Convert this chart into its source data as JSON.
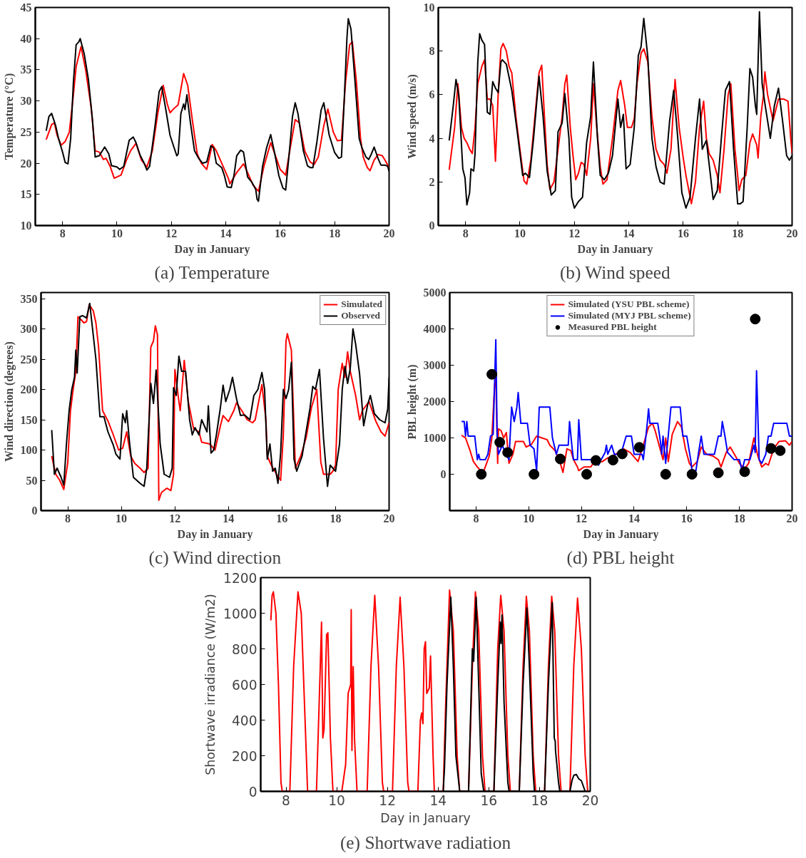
{
  "chart_data": [
    {
      "type": "line",
      "title": "(a) Temperature",
      "xlabel": "Day in January",
      "ylabel": "Temperature (°C)",
      "xlim": [
        7,
        20
      ],
      "ylim": [
        10,
        45
      ],
      "xticks": [
        8,
        10,
        12,
        14,
        16,
        18,
        20
      ],
      "yticks": [
        10,
        15,
        20,
        25,
        30,
        35,
        40,
        45
      ],
      "legend": false,
      "series": [
        {
          "color": "#ff0000",
          "x": [
            7.4,
            7.6,
            7.7,
            7.8,
            7.95,
            8.1,
            8.25,
            8.4,
            8.5,
            8.68,
            8.85,
            9.05,
            9.2,
            9.35,
            9.5,
            9.6,
            9.75,
            9.9,
            10.15,
            10.35,
            10.5,
            10.7,
            10.9,
            11.1,
            11.3,
            11.5,
            11.7,
            11.85,
            11.95,
            12.1,
            12.25,
            12.45,
            12.6,
            12.8,
            12.95,
            13.1,
            13.3,
            13.5,
            13.65,
            13.9,
            14.1,
            14.15,
            14.4,
            14.65,
            14.8,
            15.0,
            15.2,
            15.4,
            15.65,
            15.8,
            16.0,
            16.2,
            16.35,
            16.55,
            16.7,
            16.9,
            17.1,
            17.25,
            17.4,
            17.6,
            17.75,
            17.95,
            18.1,
            18.25,
            18.4,
            18.55,
            18.65,
            18.8,
            18.95,
            19.05,
            19.2,
            19.3,
            19.45,
            19.6,
            19.75,
            19.85,
            20.0
          ],
          "values": [
            23.8,
            26.2,
            26.5,
            24.5,
            22.9,
            23.5,
            25,
            31,
            35.5,
            38.7,
            35,
            29,
            22,
            21.8,
            20.6,
            20.8,
            19.5,
            17.6,
            18.1,
            20.5,
            22,
            23.2,
            20.5,
            19.4,
            22,
            28,
            32.5,
            29.5,
            28.1,
            28.8,
            29.4,
            34.4,
            32.5,
            26,
            21.5,
            20,
            19,
            23,
            22,
            19.5,
            17.5,
            16.7,
            18.5,
            19.9,
            18.5,
            16.5,
            15.5,
            19.5,
            23.3,
            21.5,
            19,
            18.1,
            22,
            27,
            26.5,
            22,
            20.2,
            19.8,
            21,
            26,
            28.7,
            25,
            23.6,
            23.7,
            33,
            39,
            39.5,
            33,
            24,
            21,
            19.3,
            18.8,
            20.5,
            21.4,
            21.2,
            20.5,
            19.3
          ]
        },
        {
          "color": "#000000",
          "x": [
            7.4,
            7.5,
            7.6,
            7.75,
            7.85,
            8.0,
            8.1,
            8.2,
            8.3,
            8.4,
            8.5,
            8.6,
            8.65,
            8.8,
            8.95,
            9.1,
            9.2,
            9.35,
            9.55,
            9.7,
            9.8,
            10.0,
            10.1,
            10.25,
            10.45,
            10.6,
            10.7,
            10.85,
            11.0,
            11.1,
            11.2,
            11.4,
            11.55,
            11.65,
            11.8,
            11.95,
            12.1,
            12.2,
            12.25,
            12.35,
            12.45,
            12.5,
            12.57,
            12.7,
            12.85,
            13.0,
            13.15,
            13.3,
            13.45,
            13.55,
            13.65,
            13.85,
            13.95,
            14.05,
            14.2,
            14.3,
            14.4,
            14.55,
            14.65,
            14.8,
            14.95,
            15.1,
            15.15,
            15.2,
            15.35,
            15.5,
            15.65,
            15.8,
            15.95,
            16.1,
            16.2,
            16.35,
            16.45,
            16.55,
            16.65,
            16.85,
            17.0,
            17.1,
            17.2,
            17.35,
            17.5,
            17.6,
            17.8,
            18.0,
            18.15,
            18.25,
            18.35,
            18.45,
            18.5,
            18.6,
            18.75,
            18.9,
            19.0,
            19.15,
            19.25,
            19.35,
            19.45,
            19.6,
            19.7,
            19.85,
            19.95,
            20.0
          ],
          "values": [
            25.2,
            27.5,
            28,
            26,
            24,
            21.8,
            20.1,
            19.9,
            24,
            33,
            39,
            39.5,
            40,
            37.5,
            33.5,
            27,
            21,
            21.2,
            22.6,
            21.5,
            19.6,
            19.4,
            19,
            19.5,
            23.7,
            24.2,
            23.3,
            21.3,
            20,
            18.9,
            19.5,
            26,
            31.5,
            32.3,
            28.5,
            24.5,
            22.5,
            21.2,
            21.5,
            28,
            29.5,
            28.6,
            31,
            26.5,
            22,
            20.8,
            20,
            20.2,
            22.8,
            22.5,
            20,
            19.3,
            18,
            16.2,
            16.1,
            18,
            21.2,
            22.1,
            21.8,
            17.8,
            17,
            15.8,
            14.2,
            13.9,
            19.5,
            22.5,
            24.6,
            21.5,
            18,
            16,
            15.7,
            22.5,
            27.5,
            29.7,
            28,
            22,
            19.6,
            19.3,
            19.3,
            23.5,
            28.5,
            29.7,
            24.5,
            21.7,
            20.8,
            21,
            30,
            40,
            43.2,
            41.5,
            33,
            24,
            22.5,
            21,
            20.6,
            21.5,
            22.6,
            20.7,
            19.7,
            19.7,
            19.5,
            18.7
          ]
        }
      ]
    },
    {
      "type": "line",
      "title": "(b) Wind speed",
      "xlabel": "Day in January",
      "ylabel": "Wind speed (m/s)",
      "xlim": [
        7,
        20
      ],
      "ylim": [
        0,
        10
      ],
      "xticks": [
        8,
        10,
        12,
        14,
        16,
        18,
        20
      ],
      "yticks": [
        0,
        2,
        4,
        6,
        8,
        10
      ],
      "legend": false,
      "series": [
        {
          "color": "#ff0000",
          "x": [
            7.4,
            7.6,
            7.72,
            7.85,
            7.95,
            8.05,
            8.15,
            8.25,
            8.35,
            8.45,
            8.6,
            8.7,
            8.8,
            8.9,
            9.0,
            9.1,
            9.2,
            9.3,
            9.38,
            9.5,
            9.6,
            9.7,
            9.85,
            10.0,
            10.15,
            10.25,
            10.4,
            10.55,
            10.7,
            10.8,
            10.9,
            11.0,
            11.1,
            11.25,
            11.4,
            11.55,
            11.65,
            11.72,
            11.85,
            11.95,
            12.05,
            12.15,
            12.25,
            12.35,
            12.45,
            12.6,
            12.7,
            12.82,
            12.95,
            13.05,
            13.2,
            13.4,
            13.6,
            13.7,
            13.85,
            13.95,
            14.1,
            14.2,
            14.3,
            14.45,
            14.55,
            14.7,
            14.85,
            15.0,
            15.15,
            15.3,
            15.4,
            15.55,
            15.7,
            15.85,
            16.0,
            16.1,
            16.3,
            16.45,
            16.6,
            16.75,
            16.85,
            16.95,
            17.1,
            17.25,
            17.35,
            17.5,
            17.65,
            17.75,
            17.9,
            18.0,
            18.05,
            18.15,
            18.3,
            18.45,
            18.55,
            18.7,
            18.75,
            18.85,
            18.95,
            19.0,
            19.1,
            19.3,
            19.5,
            19.7,
            19.85,
            19.95,
            20.0
          ],
          "values": [
            2.55,
            4.5,
            6.5,
            4.5,
            4,
            3.8,
            3.5,
            3.3,
            4.5,
            6.5,
            7.3,
            7.6,
            5.8,
            5.8,
            5.5,
            2.95,
            6,
            8.1,
            8.35,
            8,
            7.3,
            7,
            5,
            3.5,
            2.05,
            1.9,
            3,
            5,
            7,
            7.35,
            5,
            2.8,
            1.65,
            2,
            3.5,
            5,
            6.5,
            6.9,
            4.5,
            3.2,
            2.1,
            2.4,
            2.9,
            2.8,
            2.3,
            4,
            6.5,
            4.5,
            2.7,
            1.9,
            2.1,
            4,
            6.2,
            6.65,
            5.5,
            4.5,
            4.5,
            4.9,
            6.5,
            7.9,
            8.1,
            7.5,
            5,
            3.5,
            3,
            2.8,
            2.4,
            3.5,
            6.7,
            4.5,
            3.1,
            2.3,
            1.0,
            2,
            4.5,
            5.7,
            4,
            3.3,
            3,
            2.3,
            1.5,
            3.5,
            6,
            6.5,
            3.5,
            2.3,
            1.6,
            2.1,
            2.3,
            3.8,
            4.2,
            3.7,
            3.1,
            5,
            6,
            7.05,
            6,
            4.8,
            5.8,
            5.8,
            5.7,
            4,
            3.3
          ]
        },
        {
          "color": "#000000",
          "x": [
            7.4,
            7.55,
            7.65,
            7.75,
            7.9,
            7.98,
            8.05,
            8.15,
            8.2,
            8.3,
            8.35,
            8.45,
            8.52,
            8.6,
            8.7,
            8.8,
            8.9,
            9.0,
            9.1,
            9.2,
            9.3,
            9.35,
            9.5,
            9.7,
            9.9,
            10.1,
            10.2,
            10.35,
            10.5,
            10.7,
            10.85,
            11.0,
            11.15,
            11.3,
            11.4,
            11.55,
            11.65,
            11.8,
            11.9,
            12.0,
            12.15,
            12.3,
            12.45,
            12.6,
            12.7,
            12.85,
            12.95,
            13.1,
            13.25,
            13.4,
            13.6,
            13.7,
            13.8,
            13.9,
            14.05,
            14.2,
            14.35,
            14.45,
            14.55,
            14.7,
            14.85,
            15.0,
            15.15,
            15.3,
            15.5,
            15.65,
            15.8,
            15.95,
            16.1,
            16.25,
            16.45,
            16.6,
            16.7,
            16.85,
            17.0,
            17.1,
            17.25,
            17.4,
            17.55,
            17.7,
            17.85,
            18.0,
            18.1,
            18.2,
            18.35,
            18.45,
            18.55,
            18.65,
            18.7,
            18.8,
            18.9,
            19.0,
            19.2,
            19.35,
            19.5,
            19.65,
            19.8,
            19.9,
            20.0
          ],
          "values": [
            3.9,
            5.5,
            6.7,
            6,
            2.6,
            2.2,
            0.95,
            1.5,
            2.6,
            2.5,
            3.3,
            7.5,
            8.8,
            8.5,
            8.3,
            5.2,
            5.1,
            6.6,
            6.3,
            6.1,
            7.5,
            7.6,
            7.4,
            6.2,
            4.3,
            2.3,
            2.4,
            2.2,
            4,
            6.85,
            5,
            2.5,
            1.4,
            1.6,
            4.3,
            4.7,
            6.05,
            4,
            1.3,
            0.8,
            1.1,
            1.3,
            3.8,
            5,
            7.5,
            4,
            2.3,
            2.1,
            2.4,
            3.2,
            5.8,
            4.5,
            5.1,
            2.6,
            2.8,
            4.5,
            7.8,
            8.2,
            9.5,
            7.7,
            4,
            2.7,
            2,
            1.9,
            4.8,
            6.2,
            4,
            1.5,
            0.8,
            1.3,
            4,
            5.8,
            3.5,
            3.9,
            2.3,
            1.2,
            1.6,
            4,
            6.2,
            6.6,
            3.5,
            1,
            1,
            1.1,
            4.5,
            7.2,
            6.8,
            5.5,
            5.1,
            9.8,
            6.5,
            5.6,
            4,
            5.5,
            6.3,
            4.8,
            3.2,
            3.0,
            3.2
          ]
        }
      ]
    },
    {
      "type": "line",
      "title": "(c) Wind direction",
      "xlabel": "Day in January",
      "ylabel": "Wind direction (degrees)",
      "xlim": [
        7,
        20
      ],
      "ylim": [
        0,
        360
      ],
      "xticks": [
        8,
        10,
        12,
        14,
        16,
        18,
        20
      ],
      "yticks": [
        0,
        50,
        100,
        150,
        200,
        250,
        300,
        350
      ],
      "legend": "top right",
      "series": [
        {
          "name": "Simulated",
          "color": "#ff0000",
          "x": [
            7.4,
            7.55,
            7.7,
            7.85,
            8.0,
            8.1,
            8.2,
            8.3,
            8.38,
            8.5,
            8.6,
            8.7,
            8.8,
            8.95,
            9.05,
            9.15,
            9.3,
            9.5,
            9.7,
            9.9,
            10.05,
            10.2,
            10.35,
            10.5,
            10.7,
            10.85,
            11.0,
            11.1,
            11.2,
            11.27,
            11.35,
            11.4,
            11.5,
            11.7,
            11.85,
            11.95,
            12.0,
            12.15,
            12.2,
            12.35,
            12.5,
            12.7,
            12.9,
            13.0,
            13.3,
            13.5,
            13.7,
            13.8,
            14.0,
            14.2,
            14.3,
            14.5,
            14.7,
            14.9,
            15.0,
            15.25,
            15.4,
            15.45,
            15.6,
            15.8,
            15.95,
            16.05,
            16.15,
            16.2,
            16.35,
            16.5,
            16.7,
            16.9,
            17.1,
            17.3,
            17.45,
            17.55,
            17.8,
            17.9,
            18.0,
            18.1,
            18.25,
            18.35,
            18.45,
            18.55,
            18.75,
            18.9,
            19.0,
            19.25,
            19.5,
            19.7,
            19.85,
            20.0
          ],
          "values": [
            90,
            60,
            50,
            35,
            80,
            165,
            200,
            230,
            320,
            315,
            310,
            312,
            340,
            330,
            310,
            270,
            165,
            148,
            125,
            100,
            103,
            130,
            90,
            78,
            70,
            63,
            70,
            270,
            280,
            305,
            290,
            17,
            30,
            37,
            33,
            60,
            233,
            180,
            165,
            248,
            180,
            135,
            130,
            113,
            110,
            100,
            140,
            157,
            147,
            165,
            178,
            165,
            150,
            145,
            150,
            208,
            150,
            90,
            75,
            60,
            50,
            125,
            280,
            292,
            265,
            70,
            90,
            120,
            170,
            200,
            80,
            60,
            60,
            65,
            75,
            200,
            243,
            220,
            262,
            230,
            190,
            150,
            165,
            180,
            148,
            130,
            123,
            145
          ]
        },
        {
          "name": "Observed",
          "color": "#000000",
          "x": [
            7.4,
            7.5,
            7.6,
            7.75,
            7.85,
            7.95,
            8.05,
            8.15,
            8.25,
            8.3,
            8.35,
            8.45,
            8.55,
            8.7,
            8.82,
            8.95,
            9.05,
            9.2,
            9.35,
            9.5,
            9.7,
            9.8,
            9.95,
            10.05,
            10.15,
            10.2,
            10.3,
            10.45,
            10.7,
            10.85,
            10.95,
            11.1,
            11.2,
            11.3,
            11.45,
            11.6,
            11.8,
            11.9,
            11.95,
            12.05,
            12.15,
            12.25,
            12.4,
            12.55,
            12.65,
            12.75,
            12.9,
            13.0,
            13.1,
            13.2,
            13.25,
            13.35,
            13.45,
            13.55,
            13.7,
            13.8,
            13.9,
            14.05,
            14.15,
            14.3,
            14.45,
            14.6,
            14.8,
            14.95,
            15.1,
            15.25,
            15.35,
            15.45,
            15.55,
            15.65,
            15.75,
            15.85,
            15.95,
            16.05,
            16.15,
            16.25,
            16.35,
            16.45,
            16.55,
            16.75,
            16.9,
            17.05,
            17.15,
            17.25,
            17.4,
            17.55,
            17.7,
            17.8,
            18.0,
            18.15,
            18.25,
            18.35,
            18.45,
            18.55,
            18.65,
            18.75,
            18.9,
            19.05,
            19.2,
            19.3,
            19.45,
            19.65,
            19.85,
            19.95,
            20.0
          ],
          "values": [
            133,
            60,
            70,
            55,
            42,
            110,
            165,
            200,
            220,
            265,
            227,
            320,
            322,
            318,
            342,
            290,
            250,
            155,
            155,
            130,
            108,
            93,
            85,
            160,
            145,
            165,
            115,
            55,
            45,
            40,
            70,
            210,
            177,
            232,
            110,
            60,
            55,
            70,
            203,
            190,
            255,
            230,
            230,
            150,
            125,
            137,
            125,
            150,
            140,
            130,
            173,
            95,
            100,
            125,
            170,
            207,
            180,
            200,
            220,
            185,
            157,
            158,
            150,
            190,
            200,
            228,
            200,
            85,
            110,
            65,
            70,
            45,
            95,
            200,
            185,
            200,
            245,
            85,
            65,
            90,
            130,
            170,
            205,
            200,
            233,
            120,
            40,
            75,
            65,
            110,
            200,
            238,
            210,
            235,
            300,
            275,
            225,
            140,
            175,
            190,
            160,
            150,
            145,
            168,
            220
          ]
        }
      ]
    },
    {
      "type": "line",
      "title": "(d) PBL height",
      "xlabel": "Day in January",
      "ylabel": "PBL height (m)",
      "xlim": [
        7,
        20
      ],
      "ylim": [
        -1000,
        5000
      ],
      "xticks": [
        8,
        10,
        12,
        14,
        16,
        18,
        20
      ],
      "yticks": [
        0,
        1000,
        2000,
        3000,
        4000,
        5000
      ],
      "legend": "top",
      "series": [
        {
          "name": "Simulated (YSU PBL scheme)",
          "color": "#ff0000",
          "x": [
            7.45,
            7.6,
            7.75,
            7.9,
            8.05,
            8.15,
            8.3,
            8.4,
            8.5,
            8.6,
            8.7,
            8.75,
            8.82,
            8.85,
            8.95,
            9.05,
            9.15,
            9.25,
            9.4,
            9.5,
            9.8,
            9.9,
            10.1,
            10.3,
            10.5,
            10.7,
            10.8,
            11.0,
            11.2,
            11.3,
            11.45,
            11.6,
            11.7,
            11.85,
            11.9,
            12.1,
            12.35,
            12.5,
            12.8,
            13.0,
            13.3,
            13.6,
            13.85,
            14.15,
            14.35,
            14.55,
            14.7,
            14.8,
            14.95,
            15.1,
            15.2,
            15.3,
            15.45,
            15.65,
            15.8,
            15.95,
            16.1,
            16.2,
            16.4,
            16.55,
            16.75,
            17.0,
            17.2,
            17.3,
            17.5,
            17.65,
            17.85,
            18.0,
            18.2,
            18.35,
            18.55,
            18.7,
            18.85,
            19.0,
            19.1,
            19.3,
            19.5,
            19.75,
            19.9,
            20.0
          ],
          "values": [
            1070,
            1000,
            700,
            350,
            200,
            120,
            100,
            300,
            500,
            1000,
            2400,
            2700,
            300,
            1250,
            1200,
            1000,
            1150,
            300,
            550,
            900,
            900,
            750,
            820,
            1050,
            1000,
            950,
            800,
            650,
            300,
            50,
            700,
            650,
            400,
            200,
            100,
            200,
            200,
            350,
            350,
            450,
            550,
            700,
            600,
            350,
            800,
            1300,
            1400,
            1200,
            800,
            400,
            1000,
            350,
            1100,
            1450,
            1300,
            700,
            300,
            200,
            350,
            750,
            550,
            500,
            400,
            200,
            600,
            750,
            500,
            300,
            150,
            300,
            1000,
            500,
            200,
            300,
            250,
            700,
            900,
            920,
            800,
            900
          ]
        },
        {
          "name": "Simulated (MYJ PBL scheme)",
          "color": "#0000ff",
          "x": [
            7.45,
            7.55,
            7.6,
            7.65,
            7.7,
            7.95,
            8.05,
            8.1,
            8.15,
            8.35,
            8.45,
            8.55,
            8.65,
            8.75,
            8.8,
            8.85,
            9.0,
            9.1,
            9.25,
            9.35,
            9.45,
            9.55,
            9.6,
            9.7,
            9.95,
            10.05,
            10.2,
            10.3,
            10.4,
            10.8,
            10.9,
            11.05,
            11.15,
            11.5,
            11.55,
            11.65,
            11.7,
            11.85,
            11.9,
            12.0,
            12.4,
            12.6,
            12.65,
            12.75,
            12.9,
            12.95,
            13.0,
            13.15,
            13.25,
            13.5,
            13.7,
            13.9,
            14.0,
            14.3,
            14.35,
            14.45,
            14.5,
            14.55,
            14.6,
            14.9,
            15.0,
            15.05,
            15.1,
            15.2,
            15.4,
            15.75,
            15.85,
            16.0,
            16.15,
            16.2,
            16.35,
            16.45,
            16.55,
            16.65,
            16.8,
            17.05,
            17.2,
            17.3,
            17.35,
            17.45,
            17.55,
            17.8,
            18.0,
            18.1,
            18.2,
            18.4,
            18.55,
            18.6,
            18.65,
            18.75,
            18.85,
            19.0,
            19.1,
            19.2,
            19.3,
            19.8,
            19.9,
            20.0
          ],
          "values": [
            1450,
            1450,
            1050,
            1450,
            1050,
            1050,
            400,
            550,
            400,
            400,
            550,
            1050,
            1100,
            3700,
            1100,
            550,
            800,
            600,
            400,
            1850,
            1450,
            1850,
            2250,
            1400,
            1400,
            800,
            700,
            100,
            1850,
            1850,
            1000,
            550,
            800,
            800,
            1450,
            700,
            400,
            400,
            1500,
            400,
            400,
            400,
            250,
            400,
            600,
            800,
            550,
            800,
            550,
            550,
            1050,
            1050,
            550,
            550,
            400,
            1050,
            1400,
            1800,
            1400,
            1400,
            900,
            550,
            1050,
            300,
            1850,
            1850,
            1050,
            1050,
            400,
            100,
            100,
            600,
            1050,
            550,
            550,
            550,
            1050,
            1050,
            1450,
            1050,
            600,
            400,
            400,
            100,
            400,
            400,
            800,
            600,
            2850,
            400,
            300,
            550,
            1050,
            1050,
            1400,
            1400,
            1050,
            1050
          ]
        },
        {
          "name": "Measured PBL height",
          "type": "scatter",
          "marker": "circle",
          "color": "#000000",
          "x": [
            8.2,
            8.6,
            8.9,
            9.2,
            10.2,
            11.2,
            12.2,
            12.55,
            13.2,
            13.55,
            14.2,
            15.2,
            16.2,
            17.2,
            18.2,
            18.6,
            19.2,
            19.55
          ],
          "values": [
            0,
            2750,
            880,
            600,
            0,
            420,
            0,
            380,
            390,
            560,
            740,
            0,
            0,
            40,
            70,
            4270,
            710,
            650
          ]
        }
      ]
    },
    {
      "type": "line",
      "title": "(e) Shortwave radiation",
      "xlabel": "Day in January",
      "ylabel": "Shortwave irradiance (W/m2)",
      "xlim": [
        7,
        20
      ],
      "ylim": [
        0,
        1200
      ],
      "xticks": [
        8,
        10,
        12,
        14,
        16,
        18,
        20
      ],
      "yticks": [
        0,
        200,
        400,
        600,
        800,
        1000,
        1200
      ],
      "legend": false,
      "series": [
        {
          "color": "#ff0000",
          "x": [
            7.4,
            7.45,
            7.5,
            7.6,
            7.7,
            7.8,
            7.85,
            8.15,
            8.3,
            8.47,
            8.6,
            8.75,
            8.85,
            9.2,
            9.35,
            9.4,
            9.45,
            9.5,
            9.6,
            9.65,
            9.75,
            9.85,
            10.2,
            10.35,
            10.45,
            10.55,
            10.57,
            10.6,
            10.65,
            10.7,
            10.8,
            11.2,
            11.35,
            11.5,
            11.65,
            11.8,
            11.85,
            12.2,
            12.35,
            12.5,
            12.65,
            12.8,
            12.85,
            13.2,
            13.3,
            13.35,
            13.4,
            13.45,
            13.5,
            13.55,
            13.65,
            13.7,
            13.8,
            13.85,
            14.2,
            14.3,
            14.45,
            14.6,
            14.75,
            14.85,
            15.2,
            15.35,
            15.47,
            15.6,
            15.75,
            15.85,
            16.2,
            16.35,
            16.47,
            16.6,
            16.75,
            16.85,
            17.2,
            17.35,
            17.48,
            17.6,
            17.75,
            17.85,
            18.2,
            18.35,
            18.48,
            18.6,
            18.75,
            18.85,
            19.2,
            19.35,
            19.5,
            19.65,
            19.8,
            19.9
          ],
          "values": [
            960,
            1100,
            1120,
            1000,
            600,
            50,
            0,
            0,
            700,
            1120,
            1000,
            400,
            0,
            0,
            700,
            950,
            300,
            350,
            880,
            890,
            300,
            0,
            0,
            150,
            550,
            600,
            1020,
            230,
            700,
            300,
            0,
            0,
            700,
            1100,
            700,
            50,
            0,
            0,
            700,
            1090,
            700,
            50,
            0,
            0,
            400,
            440,
            380,
            800,
            840,
            550,
            580,
            760,
            200,
            0,
            0,
            500,
            1130,
            900,
            200,
            0,
            0,
            700,
            1120,
            900,
            200,
            0,
            0,
            800,
            1100,
            900,
            200,
            0,
            0,
            700,
            1095,
            900,
            200,
            0,
            0,
            700,
            1095,
            900,
            200,
            0,
            0,
            700,
            1085,
            800,
            200,
            0
          ]
        },
        {
          "color": "#000000",
          "x": [
            14.2,
            14.25,
            14.35,
            14.5,
            14.6,
            14.7,
            14.85,
            15.2,
            15.35,
            15.4,
            15.45,
            15.5,
            15.6,
            15.7,
            15.8,
            16.2,
            16.35,
            16.45,
            16.48,
            16.52,
            16.6,
            16.75,
            16.8,
            17.2,
            17.35,
            17.5,
            17.6,
            17.75,
            17.8,
            18.2,
            18.35,
            18.5,
            18.58,
            18.62,
            18.63,
            18.75,
            18.8,
            19.2,
            19.28,
            19.35,
            19.45,
            19.55,
            19.65,
            19.8
          ],
          "values": [
            0,
            130,
            600,
            1090,
            700,
            200,
            0,
            0,
            800,
            730,
            900,
            1090,
            600,
            100,
            0,
            0,
            600,
            950,
            830,
            990,
            500,
            50,
            0,
            0,
            600,
            1030,
            700,
            100,
            0,
            0,
            600,
            1060,
            300,
            280,
            230,
            50,
            0,
            0,
            60,
            90,
            95,
            70,
            60,
            0
          ]
        }
      ]
    }
  ]
}
